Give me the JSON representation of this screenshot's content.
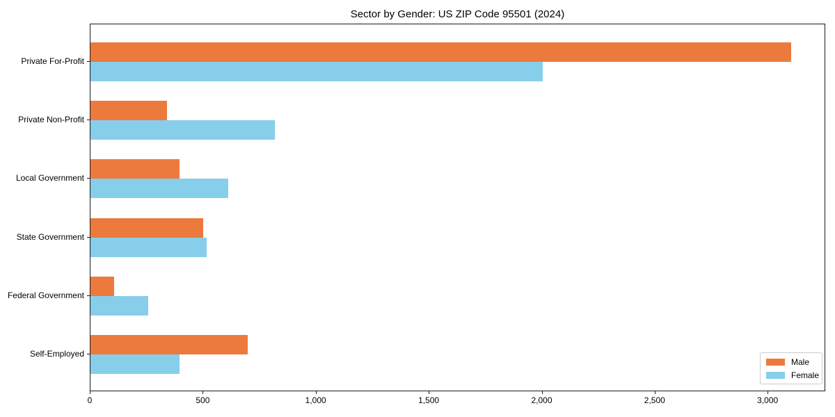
{
  "chart_data": {
    "type": "bar",
    "orientation": "horizontal",
    "title": "Sector by Gender: US ZIP Code 95501 (2024)",
    "categories": [
      "Private For-Profit",
      "Private Non-Profit",
      "Local Government",
      "State Government",
      "Federal Government",
      "Self-Employed"
    ],
    "series": [
      {
        "name": "Male",
        "color": "#EC7A3D",
        "values": [
          3100,
          340,
          395,
          500,
          105,
          695
        ]
      },
      {
        "name": "Female",
        "color": "#87CEEB",
        "values": [
          2000,
          815,
          610,
          515,
          255,
          395
        ]
      }
    ],
    "xlim": [
      0,
      3255
    ],
    "xticks": [
      0,
      500,
      1000,
      1500,
      2000,
      2500,
      3000
    ],
    "xtick_labels": [
      "0",
      "500",
      "1,000",
      "1,500",
      "2,000",
      "2,500",
      "3,000"
    ],
    "grid": false,
    "legend_position": "lower right",
    "axis_color": "#1a1a1a",
    "text_color": "#000000"
  }
}
